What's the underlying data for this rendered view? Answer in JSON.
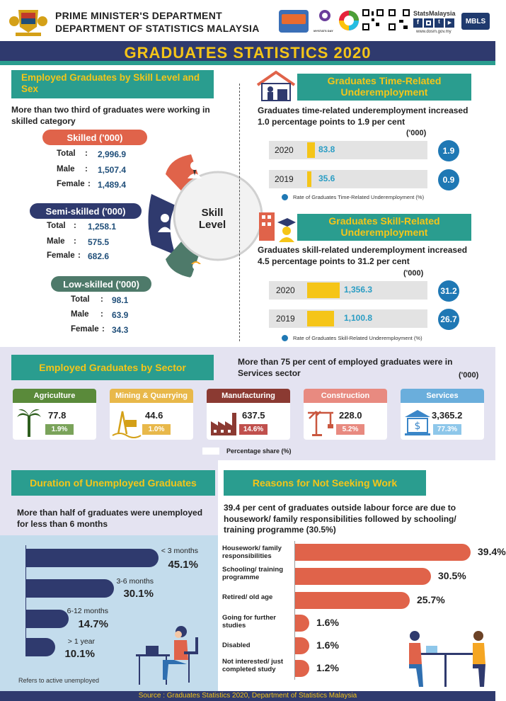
{
  "header": {
    "line1": "PRIME MINISTER'S DEPARTMENT",
    "line2": "DEPARTMENT OF STATISTICS MALAYSIA",
    "brand": "StatsMalaysia",
    "website": "www.dosm.gov.my",
    "mbls": "MBLS",
    "mystats": "MYSTATS DAY"
  },
  "title": "GRADUATES STATISTICS 2020",
  "skill": {
    "heading": "Employed Graduates by Skill Level and Sex",
    "note": "More than two third of graduates were working in skilled category",
    "center_label": "Skill Level",
    "groups": [
      {
        "name": "Skilled ('000)",
        "rows": [
          {
            "k": "Total",
            "v": "2,996.9"
          },
          {
            "k": "Male",
            "v": "1,507.4"
          },
          {
            "k": "Female",
            "v": "1,489.4"
          }
        ]
      },
      {
        "name": "Semi-skilled ('000)",
        "rows": [
          {
            "k": "Total",
            "v": "1,258.1"
          },
          {
            "k": "Male",
            "v": "575.5"
          },
          {
            "k": "Female",
            "v": "682.6"
          }
        ]
      },
      {
        "name": "Low-skilled ('000)",
        "rows": [
          {
            "k": "Total",
            "v": "98.1"
          },
          {
            "k": "Male",
            "v": "63.9"
          },
          {
            "k": "Female",
            "v": "34.3"
          }
        ]
      }
    ]
  },
  "time_related": {
    "heading": "Graduates Time-Related Underemployment",
    "note": "Graduates time-related underemployment increased 1.0 percentage points to 1.9 per cent",
    "unit": "('000)",
    "rows": [
      {
        "year": "2020",
        "value": "83.8",
        "rate": "1.9"
      },
      {
        "year": "2019",
        "value": "35.6",
        "rate": "0.9"
      }
    ],
    "legend": "Rate of Graduates Time-Related Underemployment (%)"
  },
  "skill_related": {
    "heading": "Graduates Skill-Related Underemployment",
    "note": "Graduates skill-related underemployment increased 4.5 percentage points to 31.2 per cent",
    "unit": "('000)",
    "rows": [
      {
        "year": "2020",
        "value": "1,356.3",
        "rate": "31.2"
      },
      {
        "year": "2019",
        "value": "1,100.8",
        "rate": "26.7"
      }
    ],
    "legend": "Rate of Graduates Skill-Related Underemployment (%)"
  },
  "sector": {
    "heading": "Employed Graduates by Sector",
    "note": "More than 75 per cent of employed graduates were in Services sector",
    "unit": "('000)",
    "legend": "Percentage share (%)",
    "items": [
      {
        "name": "Agriculture",
        "value": "77.8",
        "share": "1.9%",
        "color": "#5a8a3a",
        "share_color": "#7aa35a"
      },
      {
        "name": "Mining & Quarrying",
        "value": "44.6",
        "share": "1.0%",
        "color": "#e8b84a",
        "share_color": "#e8b84a"
      },
      {
        "name": "Manufacturing",
        "value": "637.5",
        "share": "14.6%",
        "color": "#8b3a32",
        "share_color": "#c0504d"
      },
      {
        "name": "Construction",
        "value": "228.0",
        "share": "5.2%",
        "color": "#e88a80",
        "share_color": "#e88a80"
      },
      {
        "name": "Services",
        "value": "3,365.2",
        "share": "77.3%",
        "color": "#6aaedc",
        "share_color": "#8ec7ea"
      }
    ]
  },
  "duration": {
    "heading": "Duration of Unemployed Graduates",
    "note": "More than half of graduates were unemployed for less than 6 months",
    "footnote": "Refers to active unemployed",
    "items": [
      {
        "label": "< 3 months",
        "value": "45.1%",
        "pct": 45.1
      },
      {
        "label": "3-6 months",
        "value": "30.1%",
        "pct": 30.1
      },
      {
        "label": "6-12 months",
        "value": "14.7%",
        "pct": 14.7
      },
      {
        "label": "> 1 year",
        "value": "10.1%",
        "pct": 10.1
      }
    ]
  },
  "reasons": {
    "heading": "Reasons for Not Seeking Work",
    "note": "39.4 per cent of graduates outside labour force are due to housework/ family responsibilities followed by schooling/ training programme (30.5%)",
    "items": [
      {
        "label": "Housework/ family responsibilities",
        "value": "39.4%",
        "pct": 39.4
      },
      {
        "label": "Schooling/ training programme",
        "value": "30.5%",
        "pct": 30.5
      },
      {
        "label": "Retired/ old age",
        "value": "25.7%",
        "pct": 25.7
      },
      {
        "label": "Going for further studies",
        "value": "1.6%",
        "pct": 1.6
      },
      {
        "label": "Disabled",
        "value": "1.6%",
        "pct": 1.6
      },
      {
        "label": "Not interested/ just completed study",
        "value": "1.2%",
        "pct": 1.2
      }
    ]
  },
  "footer": "Source : Graduates Statistics 2020, Department of Statistics Malaysia"
}
